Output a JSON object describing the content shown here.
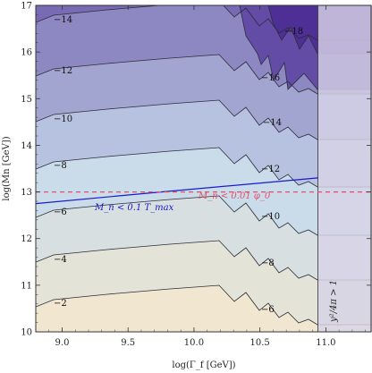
{
  "chart_data": {
    "type": "contour",
    "xlabel": "log(Γ_f [GeV])",
    "ylabel": "log(Mn [GeV])",
    "xlim": [
      8.8,
      11.35
    ],
    "ylim": [
      10.0,
      17.0
    ],
    "x_ticks": [
      "9.0",
      "9.5",
      "10.0",
      "10.5",
      "11.0"
    ],
    "y_ticks": [
      "10",
      "11",
      "12",
      "13",
      "14",
      "15",
      "16",
      "17"
    ],
    "contour_levels": [
      -18,
      -16,
      -14,
      -12,
      -10,
      -8,
      -6,
      -4,
      -2
    ],
    "contour_labels": [
      "−18",
      "−16",
      "−14",
      "−12",
      "−10",
      "−8",
      "−6",
      "−4",
      "−2",
      "−14",
      "−12",
      "−10",
      "−8",
      "−6",
      "−4",
      "−2"
    ],
    "colors": {
      "low": "#f1e6cf",
      "mid": "#c8dbeb",
      "high": "#4e2f96",
      "line_blue": "#1a1acc",
      "line_red": "#e0506a",
      "excluded_region": "#d7d3e6"
    },
    "curves": [
      {
        "label": "M_n < 0.1 T_max",
        "style": "solid",
        "color": "#1a1acc",
        "points": [
          [
            8.8,
            12.75
          ],
          [
            9.75,
            13.0
          ],
          [
            10.94,
            13.3
          ]
        ]
      },
      {
        "label": "M_n < 0.01 φ_0",
        "style": "dashed",
        "color": "#e0506a",
        "points": [
          [
            8.8,
            13.0
          ],
          [
            11.35,
            13.0
          ]
        ]
      }
    ],
    "excluded_region": {
      "label": "y²/4π > 1",
      "x_from": 10.94
    },
    "annotations": [
      "M_n < 0.1 T_max",
      "M_n < 0.01 φ_0",
      "y²/4π > 1"
    ],
    "grid": false,
    "legend": "none"
  }
}
